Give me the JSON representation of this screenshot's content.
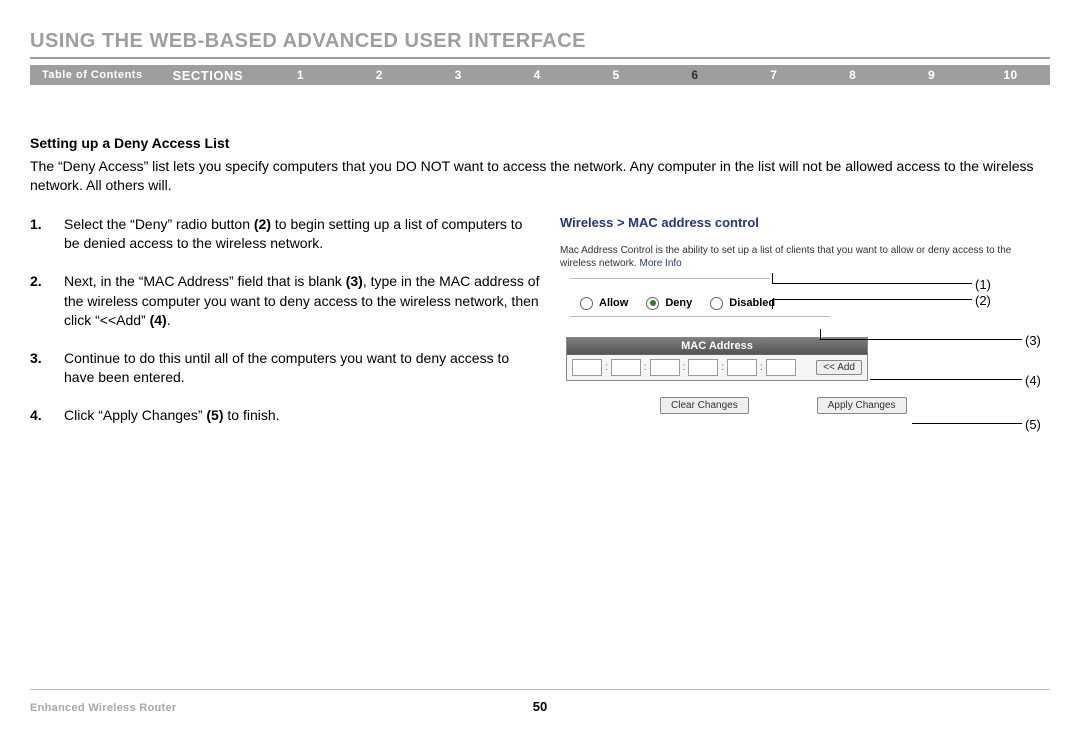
{
  "chapter_title": "USING THE WEB-BASED ADVANCED USER INTERFACE",
  "nav": {
    "toc": "Table of Contents",
    "sections_label": "SECTIONS",
    "items": [
      "1",
      "2",
      "3",
      "4",
      "5",
      "6",
      "7",
      "8",
      "9",
      "10"
    ],
    "active_index": 5
  },
  "subheading": "Setting up a Deny Access List",
  "intro": "The “Deny Access” list lets you specify computers that you DO NOT want to access the network. Any computer in the list will not be allowed access to the wireless network. All others will.",
  "steps": [
    {
      "num": "1.",
      "html": "Select the “Deny” radio button <b>(2)</b> to begin setting up a list of computers to be denied access to the wireless network."
    },
    {
      "num": "2.",
      "html": "Next, in the “MAC Address” field that is blank <b>(3)</b>, type in the MAC address of the wireless computer you want to deny access to the wireless network, then click “&lt;&lt;Add” <b>(4)</b>."
    },
    {
      "num": "3.",
      "html": "Continue to do this until all of the computers you want to deny access to have been entered."
    },
    {
      "num": "4.",
      "html": "Click “Apply Changes” <b>(5)</b> to finish."
    }
  ],
  "ui": {
    "breadcrumb": "Wireless > MAC address control",
    "desc_text": "Mac Address Control is the ability to set up a list of clients that you want to allow or deny access to the wireless network.",
    "more_info": "More Info",
    "radios": {
      "allow": "Allow",
      "deny": "Deny",
      "disabled": "Disabled",
      "selected": "deny"
    },
    "table_header": "MAC Address",
    "add_button": "<< Add",
    "clear_button": "Clear Changes",
    "apply_button": "Apply Changes"
  },
  "callouts": {
    "c1": "(1)",
    "c2": "(2)",
    "c3": "(3)",
    "c4": "(4)",
    "c5": "(5)"
  },
  "footer": {
    "left": "Enhanced Wireless Router",
    "page": "50"
  },
  "colors": {
    "grey": "#9e9e9e",
    "dark": "#303030",
    "link": "#27357e",
    "bar1": "#7d7d7d",
    "bar2": "#555",
    "border": "#888"
  }
}
